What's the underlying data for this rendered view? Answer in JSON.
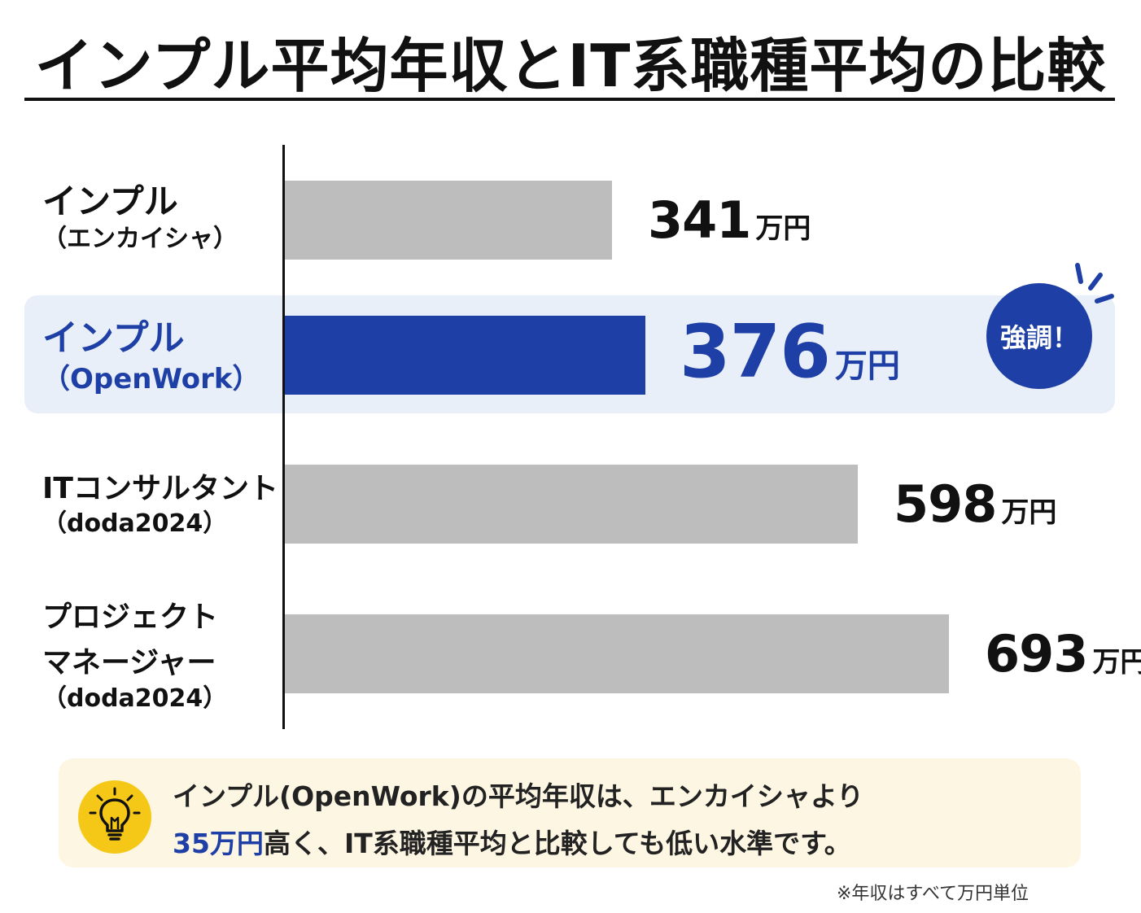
{
  "title": "インプル平均年収とIT系職種平均の比較",
  "colors": {
    "accent": "#1e3fa5",
    "bar_gray": "#bdbdbd",
    "highlight_band": "#e9eff9",
    "summary_bg": "#fdf6e3",
    "bulb_yellow": "#f5c817",
    "text_dark": "#111111"
  },
  "badge": {
    "label": "強調！"
  },
  "chart_data": {
    "type": "bar",
    "orientation": "horizontal",
    "unit": "万円",
    "xlim": [
      0,
      720
    ],
    "categories": [
      [
        "インプル",
        "（エンカイシャ）"
      ],
      [
        "インプル",
        "（OpenWork）"
      ],
      [
        "ITコンサルタント",
        "（doda2024）"
      ],
      [
        "プロジェクト",
        "マネージャー",
        "（doda2024）"
      ]
    ],
    "values": [
      341,
      376,
      598,
      693
    ],
    "highlighted_index": 1
  },
  "summary": {
    "line1": "インプル(OpenWork)の平均年収は、エンカイシャより",
    "line2_highlight": "35万円",
    "line2_rest": "高く、IT系職種平均と比較しても低い水準です。",
    "icon": "lightbulb-icon"
  },
  "footnote": "※年収はすべて万円単位"
}
